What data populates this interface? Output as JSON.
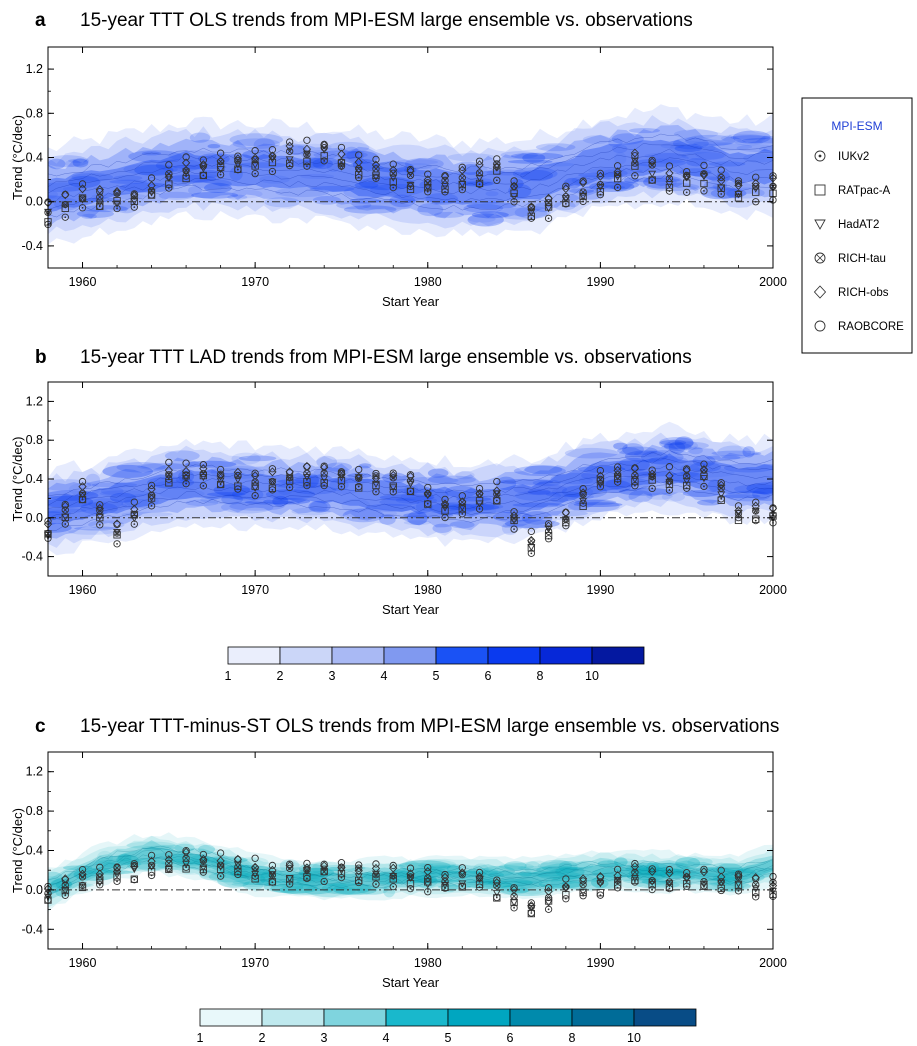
{
  "chart_data": [
    {
      "panel": "a",
      "type": "heatmap",
      "title": "15-year TTT OLS trends from MPI-ESM large ensemble vs. observations",
      "xlabel": "Start Year",
      "ylabel": "Trend (°C/dec)",
      "xlim": [
        1958,
        2000
      ],
      "ylim": [
        -0.6,
        1.4
      ],
      "xticks": [
        1960,
        1970,
        1980,
        1990,
        2000
      ],
      "yticks": [
        "-0.4",
        "0.0",
        "0.4",
        "0.8",
        "1.2"
      ],
      "ensemble_color": "#0a3cf0",
      "ensemble_center": {
        "x": [
          1958,
          1962,
          1966,
          1970,
          1974,
          1978,
          1982,
          1986,
          1990,
          1994,
          1998,
          2000
        ],
        "y": [
          0.05,
          0.18,
          0.3,
          0.28,
          0.25,
          0.17,
          0.12,
          0.15,
          0.35,
          0.42,
          0.3,
          0.32
        ]
      },
      "observations_center": {
        "x": [
          1958,
          1960,
          1963,
          1966,
          1969,
          1971,
          1974,
          1976,
          1979,
          1981,
          1984,
          1986,
          1988,
          1990,
          1992,
          1994,
          1996,
          1998,
          2000
        ],
        "y": [
          -0.1,
          0.05,
          0.02,
          0.3,
          0.35,
          0.4,
          0.45,
          0.3,
          0.2,
          0.15,
          0.3,
          -0.1,
          0.05,
          0.15,
          0.35,
          0.2,
          0.22,
          0.12,
          0.13
        ]
      },
      "zero_line": 0.0
    },
    {
      "panel": "b",
      "type": "heatmap",
      "title": "15-year TTT LAD trends from MPI-ESM large ensemble vs. observations",
      "xlabel": "Start Year",
      "ylabel": "Trend (°C/dec)",
      "xlim": [
        1958,
        2000
      ],
      "ylim": [
        -0.6,
        1.4
      ],
      "xticks": [
        1960,
        1970,
        1980,
        1990,
        2000
      ],
      "yticks": [
        "-0.4",
        "0.0",
        "0.4",
        "0.8",
        "1.2"
      ],
      "ensemble_color": "#0a3cf0",
      "ensemble_center": {
        "x": [
          1958,
          1962,
          1966,
          1970,
          1974,
          1978,
          1982,
          1986,
          1990,
          1994,
          1998,
          2000
        ],
        "y": [
          0.05,
          0.2,
          0.35,
          0.32,
          0.3,
          0.22,
          0.15,
          0.2,
          0.42,
          0.5,
          0.38,
          0.4
        ]
      },
      "observations_center": {
        "x": [
          1958,
          1960,
          1962,
          1965,
          1967,
          1970,
          1973,
          1976,
          1979,
          1981,
          1984,
          1986,
          1988,
          1990,
          1992,
          1994,
          1996,
          1998,
          2000
        ],
        "y": [
          -0.15,
          0.25,
          -0.15,
          0.45,
          0.45,
          0.35,
          0.45,
          0.4,
          0.35,
          0.1,
          0.25,
          -0.25,
          0.0,
          0.4,
          0.45,
          0.4,
          0.45,
          0.05,
          0.05
        ]
      },
      "zero_line": 0.0
    },
    {
      "panel": "c",
      "type": "heatmap",
      "title": "15-year TTT-minus-ST OLS trends from MPI-ESM large ensemble vs. observations",
      "xlabel": "Start Year",
      "ylabel": "Trend (°C/dec)",
      "xlim": [
        1958,
        2000
      ],
      "ylim": [
        -0.6,
        1.4
      ],
      "xticks": [
        1960,
        1970,
        1980,
        1990,
        2000
      ],
      "yticks": [
        "-0.4",
        "0.0",
        "0.4",
        "0.8",
        "1.2"
      ],
      "ensemble_color": "#00aabb",
      "ensemble_center": {
        "x": [
          1958,
          1961,
          1964,
          1967,
          1970,
          1974,
          1978,
          1982,
          1986,
          1990,
          1994,
          1998,
          2000
        ],
        "y": [
          0.0,
          0.25,
          0.38,
          0.3,
          0.15,
          0.1,
          0.12,
          0.14,
          0.12,
          0.2,
          0.18,
          0.15,
          0.25
        ]
      },
      "observations_center": {
        "x": [
          1958,
          1960,
          1963,
          1966,
          1969,
          1971,
          1974,
          1977,
          1980,
          1983,
          1986,
          1988,
          1990,
          1992,
          1994,
          1996,
          1998,
          2000
        ],
        "y": [
          -0.05,
          0.1,
          0.2,
          0.3,
          0.25,
          0.15,
          0.2,
          0.15,
          0.1,
          0.1,
          -0.18,
          0.0,
          0.05,
          0.15,
          0.08,
          0.1,
          0.08,
          0.02
        ]
      },
      "zero_line": 0.0
    }
  ],
  "legend": {
    "heading": "MPI-ESM",
    "heading_color": "#1f3fd6",
    "items": [
      {
        "label": "IUKv2",
        "marker": "circle-dot"
      },
      {
        "label": "RATpac-A",
        "marker": "square"
      },
      {
        "label": "HadAT2",
        "marker": "triangle-down"
      },
      {
        "label": "RICH-tau",
        "marker": "circle-x"
      },
      {
        "label": "RICH-obs",
        "marker": "diamond"
      },
      {
        "label": "RAOBCORE",
        "marker": "circle"
      }
    ]
  },
  "colorbars": [
    {
      "name": "blue",
      "labels": [
        "1",
        "2",
        "3",
        "4",
        "5",
        "6",
        "8",
        "10"
      ],
      "colors": [
        "#eaeefc",
        "#cbd6f8",
        "#a9b9f4",
        "#8099f0",
        "#1a52f5",
        "#0a3aef",
        "#0628d8",
        "#0418a0"
      ]
    },
    {
      "name": "teal",
      "labels": [
        "1",
        "2",
        "3",
        "4",
        "5",
        "6",
        "8",
        "10"
      ],
      "colors": [
        "#e8f8fa",
        "#bfe9ee",
        "#7fd4de",
        "#19b8cc",
        "#00a6c0",
        "#008aac",
        "#006c98",
        "#084c86"
      ]
    }
  ]
}
